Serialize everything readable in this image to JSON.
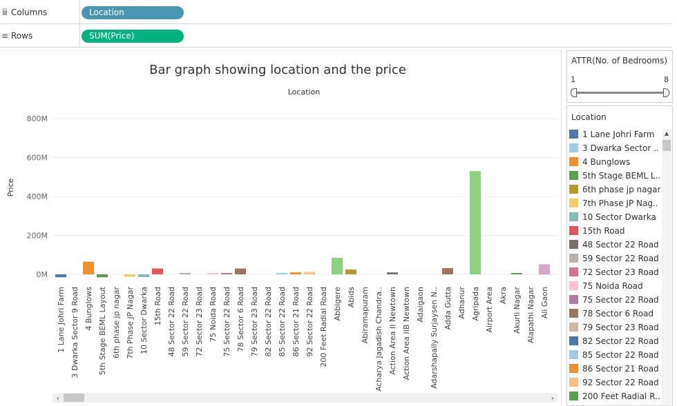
{
  "shelves": {
    "columns": {
      "label": "Columns",
      "icon": "columns-icon",
      "pill": "Location",
      "pill_color": "#4996b2"
    },
    "rows": {
      "label": "Rows",
      "icon": "rows-icon",
      "pill": "SUM(Price)",
      "pill_color": "#00b180"
    }
  },
  "filter": {
    "title": "ATTR(No. of Bedrooms)",
    "min_label": "1",
    "max_label": "8"
  },
  "legend": {
    "title": "Location",
    "items": [
      {
        "label": "1 Lane Johri Farm",
        "color": "#4e79a7"
      },
      {
        "label": "3 Dwarka Sector ..",
        "color": "#a0cbe8"
      },
      {
        "label": "4 Bunglows",
        "color": "#f28e2b"
      },
      {
        "label": "5th Stage BEML L..",
        "color": "#59a14f"
      },
      {
        "label": "6th phase jp nagar",
        "color": "#b6992d"
      },
      {
        "label": "7th Phase JP Nag..",
        "color": "#f1ce63"
      },
      {
        "label": "10 Sector Dwarka",
        "color": "#86bcb6"
      },
      {
        "label": "15th Road",
        "color": "#e15759"
      },
      {
        "label": "48 Sector 22 Road",
        "color": "#79706e"
      },
      {
        "label": "59 Sector 22 Road",
        "color": "#bab0ac"
      },
      {
        "label": "72 Sector 23 Road",
        "color": "#d37295"
      },
      {
        "label": "75 Noida Road",
        "color": "#fabfd2"
      },
      {
        "label": "75 Sector 22 Road",
        "color": "#b07aa1"
      },
      {
        "label": "78 Sector 6 Road",
        "color": "#9d7660"
      },
      {
        "label": "79 Sector 23 Road",
        "color": "#d7b5a6"
      },
      {
        "label": "82 Sector 22 Road",
        "color": "#4e79a7"
      },
      {
        "label": "85 Sector 22 Road",
        "color": "#a0cbe8"
      },
      {
        "label": "86 Sector 21 Road",
        "color": "#f28e2b"
      },
      {
        "label": "92 Sector 22 Road",
        "color": "#ffbe7d"
      },
      {
        "label": "200 Feet Radial R..",
        "color": "#59a14f"
      }
    ]
  },
  "chart_data": {
    "type": "bar",
    "title": "Bar graph  showing location and the price",
    "column_header": "Location",
    "ylabel": "Price",
    "ylim": [
      -0.05,
      0.9
    ],
    "yunit": "M",
    "yticks": [
      0,
      200,
      400,
      600,
      800
    ],
    "ytick_labels": [
      "0M",
      "200M",
      "400M",
      "600M",
      "800M"
    ],
    "grid": true,
    "categories": [
      {
        "label": "1 Lane Johri Farm",
        "value": -15,
        "color": "#4e79a7"
      },
      {
        "label": "3 Dwarka Sector 9 Road",
        "value": 0,
        "color": "#a0cbe8"
      },
      {
        "label": "4 Bunglows",
        "value": 65,
        "color": "#f28e2b"
      },
      {
        "label": "5th Stage BEML Layout",
        "value": -15,
        "color": "#59a14f"
      },
      {
        "label": "6th phase jp nagar",
        "value": 0,
        "color": "#b6992d"
      },
      {
        "label": "7th Phase JP Nagar",
        "value": -12,
        "color": "#f1ce63"
      },
      {
        "label": "10 Sector Dwarka",
        "value": -14,
        "color": "#86bcb6"
      },
      {
        "label": "15th Road",
        "value": 30,
        "color": "#e15759"
      },
      {
        "label": "48 Sector 22 Road",
        "value": 0,
        "color": "#79706e"
      },
      {
        "label": "59 Sector 22 Road",
        "value": 5,
        "color": "#bab0ac"
      },
      {
        "label": "72 Sector 23 Road",
        "value": 0,
        "color": "#d37295"
      },
      {
        "label": "75 Noida Road",
        "value": 5,
        "color": "#fabfd2"
      },
      {
        "label": "75 Sector 22 Road",
        "value": 5,
        "color": "#b07aa1"
      },
      {
        "label": "78 Sector 6 Road",
        "value": 30,
        "color": "#9d7660"
      },
      {
        "label": "79 Sector 23 Road",
        "value": 0,
        "color": "#d7b5a6"
      },
      {
        "label": "82 Sector 22 Road",
        "value": 0,
        "color": "#4e79a7"
      },
      {
        "label": "85 Sector 22 Road",
        "value": 3,
        "color": "#a0cbe8"
      },
      {
        "label": "86 Sector 21 Road",
        "value": 10,
        "color": "#f28e2b"
      },
      {
        "label": "92 Sector 22 Road",
        "value": 12,
        "color": "#ffbe7d"
      },
      {
        "label": "200 Feet Radial Road",
        "value": 0,
        "color": "#59a14f"
      },
      {
        "label": "Abbigere",
        "value": 85,
        "color": "#8cd17d"
      },
      {
        "label": "Abids",
        "value": 25,
        "color": "#b6992d"
      },
      {
        "label": "Abiramapuram",
        "value": 0,
        "color": "#499894"
      },
      {
        "label": "Acharya Jagadish Chandra..",
        "value": 0,
        "color": "#e15759"
      },
      {
        "label": "Action Area II Newtown",
        "value": 10,
        "color": "#79706e"
      },
      {
        "label": "Action Area IIB Newtown",
        "value": 0,
        "color": "#d37295"
      },
      {
        "label": "Adaigaon",
        "value": 0,
        "color": "#fabfd2"
      },
      {
        "label": "Adarshapally Surjaysen N..",
        "value": 0,
        "color": "#b07aa1"
      },
      {
        "label": "Adda Gutta",
        "value": 32,
        "color": "#9d7660"
      },
      {
        "label": "Adhanur",
        "value": 0,
        "color": "#d7b5a6"
      },
      {
        "label": "Agripada",
        "value": 530,
        "color": "#8cd17d"
      },
      {
        "label": "Airport Area",
        "value": 0,
        "color": "#a0cbe8"
      },
      {
        "label": "Akra",
        "value": 0,
        "color": "#f28e2b"
      },
      {
        "label": "Akurli Nagar",
        "value": 5,
        "color": "#59a14f"
      },
      {
        "label": "Alapathi Nagar",
        "value": 0,
        "color": "#b6992d"
      },
      {
        "label": "Ali Gaon",
        "value": 52,
        "color": "#d4a6c8"
      }
    ]
  }
}
